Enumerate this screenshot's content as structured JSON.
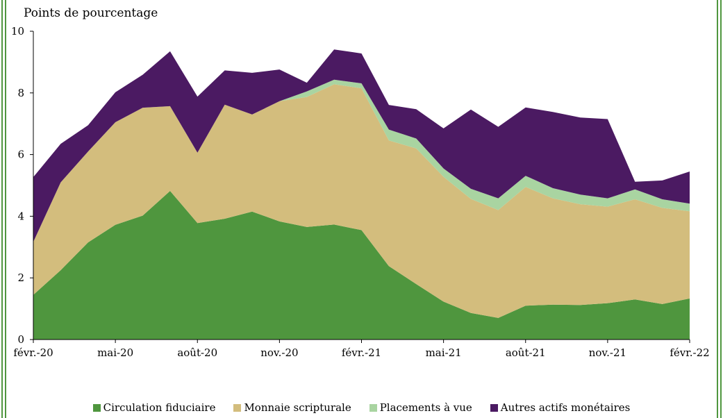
{
  "chart_data": {
    "type": "area",
    "stacked": true,
    "ylabel": "Points de pourcentage",
    "ylim": [
      0,
      10
    ],
    "yticks": [
      0,
      2,
      4,
      6,
      8,
      10
    ],
    "grid": false,
    "legend_position": "bottom",
    "x": [
      "févr.-20",
      "mars-20",
      "avr.-20",
      "mai-20",
      "juin-20",
      "juil.-20",
      "août-20",
      "sept.-20",
      "oct.-20",
      "nov.-20",
      "déc.-20",
      "janv.-21",
      "févr.-21",
      "mars-21",
      "avr.-21",
      "mai-21",
      "juin-21",
      "juil.-21",
      "août-21",
      "sept.-21",
      "oct.-21",
      "nov.-21",
      "déc.-21",
      "janv.-22",
      "févr.-22"
    ],
    "xtick_labels": [
      "févr.-20",
      "mai-20",
      "août-20",
      "nov.-20",
      "févr.-21",
      "mai-21",
      "août-21",
      "nov.-21",
      "févr.-22"
    ],
    "xtick_indices": [
      0,
      3,
      6,
      9,
      12,
      15,
      18,
      21,
      24
    ],
    "series": [
      {
        "name": "Circulation fiduciaire",
        "color": "#4f963e",
        "values": [
          1.45,
          2.25,
          3.15,
          3.72,
          4.02,
          4.82,
          3.78,
          3.92,
          4.15,
          3.83,
          3.65,
          3.73,
          3.55,
          2.38,
          1.8,
          1.23,
          0.86,
          0.7,
          1.1,
          1.13,
          1.12,
          1.18,
          1.3,
          1.15,
          1.33
        ]
      },
      {
        "name": "Monnaie scripturale",
        "color": "#d3bd7d",
        "values": [
          1.72,
          2.85,
          2.95,
          3.33,
          3.5,
          2.75,
          2.28,
          3.7,
          3.15,
          3.9,
          4.22,
          4.55,
          4.6,
          4.08,
          4.4,
          4.05,
          3.7,
          3.5,
          3.85,
          3.45,
          3.27,
          3.13,
          3.25,
          3.12,
          2.83
        ]
      },
      {
        "name": "Placements à vue",
        "color": "#a9d4a1",
        "values": [
          0,
          0,
          0,
          0,
          0,
          0,
          0,
          0,
          0,
          0,
          0.18,
          0.15,
          0.16,
          0.35,
          0.32,
          0.27,
          0.33,
          0.38,
          0.36,
          0.33,
          0.31,
          0.27,
          0.32,
          0.28,
          0.25
        ]
      },
      {
        "name": "Autres actifs monétaires",
        "color": "#4b1a62",
        "values": [
          2.1,
          1.25,
          0.85,
          0.97,
          1.07,
          1.78,
          1.82,
          1.11,
          1.35,
          1.03,
          0.28,
          0.98,
          0.97,
          0.8,
          0.95,
          1.3,
          2.57,
          2.32,
          2.22,
          2.47,
          2.5,
          2.57,
          0.25,
          0.61,
          1.04
        ]
      }
    ]
  }
}
